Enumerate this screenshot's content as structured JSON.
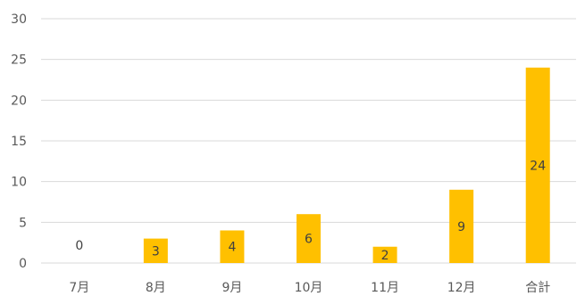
{
  "chart_data": {
    "type": "bar",
    "categories": [
      "7月",
      "8月",
      "9月",
      "10月",
      "11月",
      "12月",
      "合計"
    ],
    "values": [
      0,
      3,
      4,
      6,
      2,
      9,
      24
    ],
    "data_labels": [
      "0",
      "3",
      "4",
      "6",
      "2",
      "9",
      "24"
    ],
    "ylim": [
      0,
      30
    ],
    "yticks": [
      0,
      5,
      10,
      15,
      20,
      25,
      30
    ],
    "ytick_labels": [
      "0",
      "5",
      "10",
      "15",
      "20",
      "25",
      "30"
    ],
    "grid": true,
    "title": "",
    "xlabel": "",
    "ylabel": "",
    "legend": "none",
    "colors": {
      "bar": "#FFC000",
      "grid": "#d9d9d9",
      "axis": "#d9d9d9",
      "tick_text": "#595959",
      "data_label": "#404040"
    }
  }
}
